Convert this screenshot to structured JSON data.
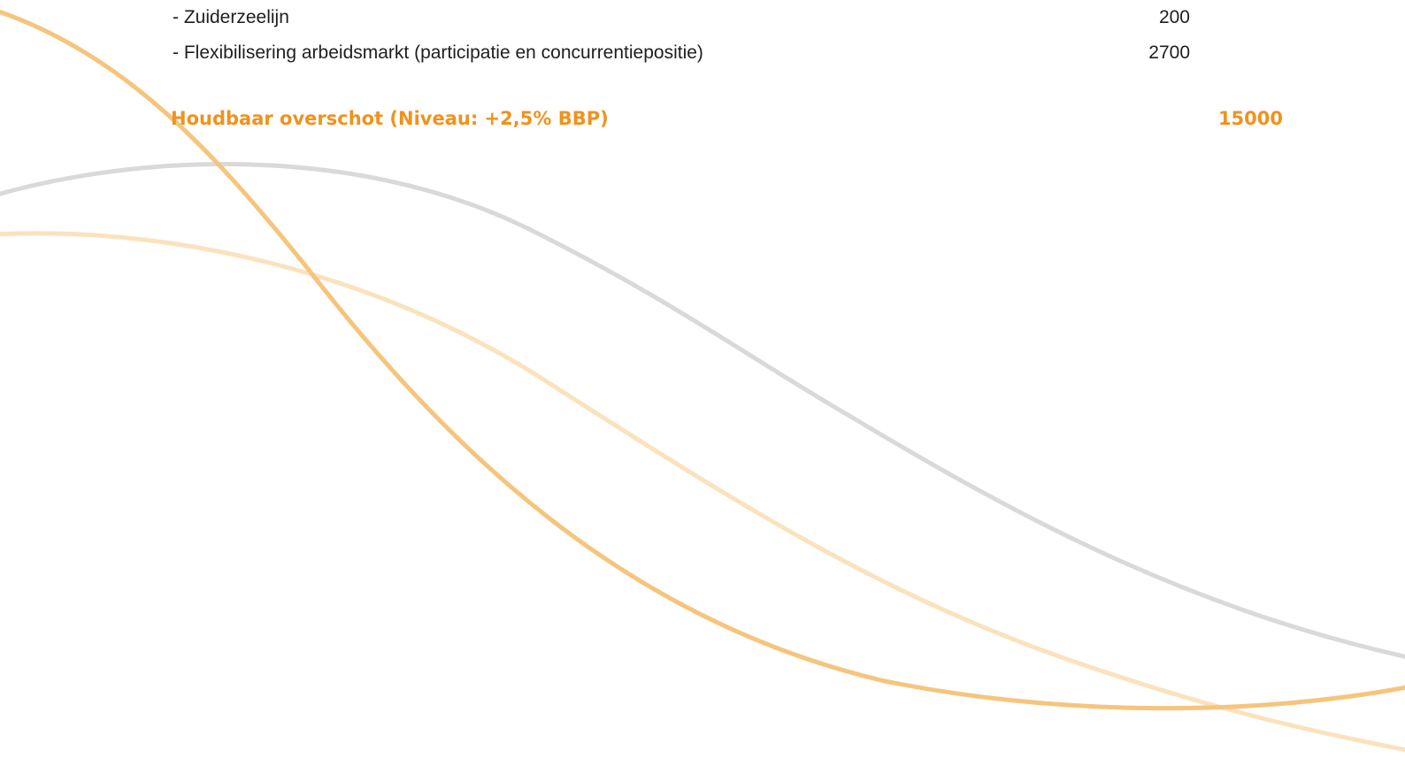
{
  "items": [
    {
      "label": "- Zuiderzeelijn",
      "value": "200"
    },
    {
      "label": "- Flexibilisering arbeidsmarkt (participatie en concurrentiepositie)",
      "value": "2700"
    }
  ],
  "total": {
    "label": "Houdbaar overschot (Niveau: +2,5% BBP)",
    "value": "15000"
  },
  "colors": {
    "accent": "#f0921e",
    "text": "#1e1e1e",
    "curve_orange": "#f5c57d",
    "curve_light_orange": "#fbe2bd",
    "curve_gray": "#d9d9d9"
  }
}
